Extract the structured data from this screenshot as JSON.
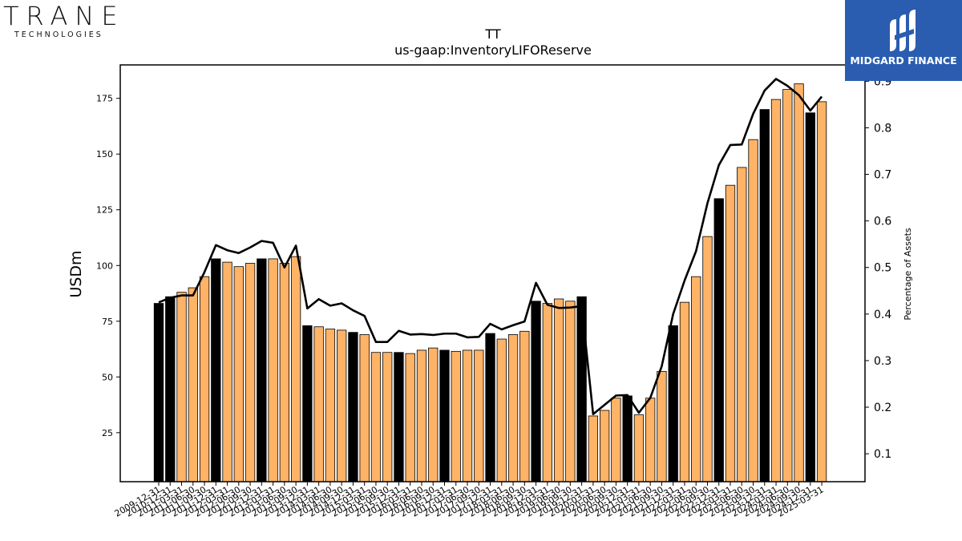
{
  "logos": {
    "left_brand": "TRANE",
    "left_sub": "TECHNOLOGIES",
    "right_brand": "MIDGARD FINANCE"
  },
  "chart_data": {
    "type": "bar",
    "title": "TT",
    "subtitle": "us-gaap:InventoryLIFOReserve",
    "ylabel": "USDm",
    "y2label": "Percentage of Assets",
    "ylim": [
      3,
      190
    ],
    "y2lim": [
      0.04,
      0.935
    ],
    "yticks": [
      25,
      50,
      75,
      100,
      125,
      150,
      175
    ],
    "y2ticks": [
      0.1,
      0.2,
      0.3,
      0.4,
      0.5,
      0.6,
      0.7,
      0.8,
      0.9
    ],
    "colors": {
      "annual": "#000000",
      "quarter": "#ffb366",
      "line": "#000000"
    },
    "series": [
      {
        "name": "USDm",
        "values": [
          83,
          86,
          88,
          90,
          95,
          103,
          101.5,
          99.5,
          101,
          103,
          103,
          101,
          104,
          73,
          72.5,
          71.5,
          71,
          70,
          69,
          61,
          61,
          61,
          60.5,
          62,
          63,
          62,
          61.5,
          62,
          62,
          69.5,
          67,
          69,
          70.5,
          84,
          83,
          85,
          84,
          86,
          32.5,
          35,
          40.5,
          41.5,
          33,
          40.5,
          52.5,
          73,
          83.5,
          95,
          113,
          130,
          136,
          144,
          156.5,
          170,
          174.5,
          179,
          181.5,
          168.5,
          173.5
        ]
      },
      {
        "name": "Percentage of Assets",
        "values": [
          0.425,
          0.435,
          0.44,
          0.44,
          0.49,
          0.548,
          0.537,
          0.531,
          0.543,
          0.557,
          0.553,
          0.5,
          0.547,
          0.412,
          0.432,
          0.418,
          0.423,
          0.408,
          0.396,
          0.34,
          0.34,
          0.364,
          0.356,
          0.357,
          0.355,
          0.358,
          0.358,
          0.35,
          0.351,
          0.379,
          0.367,
          0.376,
          0.384,
          0.467,
          0.42,
          0.413,
          0.414,
          0.417,
          0.185,
          0.205,
          0.225,
          0.226,
          0.188,
          0.22,
          0.288,
          0.4,
          0.472,
          0.535,
          0.638,
          0.72,
          0.763,
          0.764,
          0.83,
          0.88,
          0.905,
          0.89,
          0.87,
          0.837,
          0.867
        ]
      }
    ],
    "annual_flags": [
      1,
      1,
      0,
      0,
      0,
      1,
      0,
      0,
      0,
      1,
      0,
      0,
      0,
      1,
      0,
      0,
      0,
      1,
      0,
      0,
      0,
      1,
      0,
      0,
      0,
      1,
      0,
      0,
      0,
      1,
      0,
      0,
      0,
      1,
      0,
      0,
      0,
      1,
      0,
      0,
      0,
      1,
      0,
      0,
      0,
      1,
      0,
      0,
      0,
      1,
      0,
      0,
      0,
      1,
      0,
      0,
      0,
      1,
      0
    ],
    "categories": [
      "2009-12-31",
      "2010-12-31",
      "2011-03-31",
      "2011-06-30",
      "2011-09-30",
      "2011-12-31",
      "2012-03-31",
      "2012-06-30",
      "2012-09-30",
      "2012-12-31",
      "2013-03-31",
      "2013-06-30",
      "2013-09-30",
      "2013-12-31",
      "2014-03-31",
      "2014-06-30",
      "2014-09-30",
      "2014-12-31",
      "2015-03-31",
      "2015-06-30",
      "2015-09-30",
      "2015-12-31",
      "2016-03-31",
      "2016-06-30",
      "2016-09-30",
      "2016-12-31",
      "2017-03-31",
      "2017-06-30",
      "2017-09-30",
      "2017-12-31",
      "2018-03-31",
      "2018-06-30",
      "2018-09-30",
      "2018-12-31",
      "2019-03-31",
      "2019-06-30",
      "2019-09-30",
      "2019-12-31",
      "2020-03-31",
      "2020-06-30",
      "2020-09-30",
      "2020-12-31",
      "2021-03-31",
      "2021-06-30",
      "2021-09-30",
      "2021-12-31",
      "2022-03-31",
      "2022-06-30",
      "2022-09-30",
      "2022-12-31",
      "2023-03-31",
      "2023-06-30",
      "2023-09-30",
      "2023-12-31",
      "2024-03-31",
      "2024-06-30",
      "2024-09-30",
      "2024-12-31",
      "2025-03-31"
    ]
  }
}
